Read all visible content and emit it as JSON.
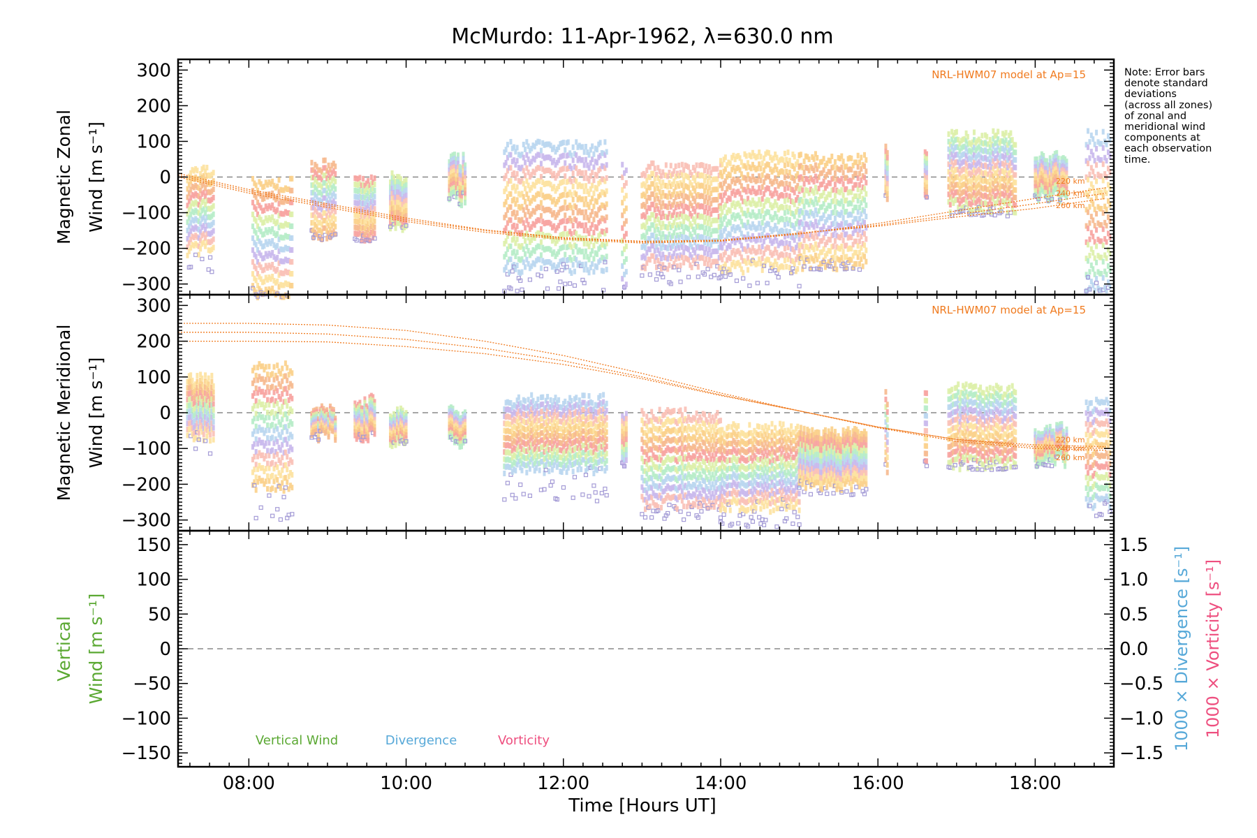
{
  "title": "McMurdo: 11-Apr-1962, λ=630.0 nm",
  "x_axis": {
    "label": "Time [Hours UT]",
    "tick_labels": [
      "08:00",
      "10:00",
      "12:00",
      "14:00",
      "16:00",
      "18:00"
    ],
    "range_hours": [
      7.1,
      19.0
    ]
  },
  "note": [
    "Note: Error bars",
    "denote standard",
    "deviations",
    "(across all zones)",
    "of zonal and",
    "meridional wind",
    "components at",
    "each observation",
    "time."
  ],
  "colors": {
    "model": "#f07a1e",
    "vertical": "#5aa832",
    "divergence": "#56a8d8",
    "vorticity": "#ee4f7f",
    "zero_line": "#888888"
  },
  "chart_data": [
    {
      "type": "scatter",
      "panel": "zonal",
      "ylabel_lines": [
        "Magnetic Zonal",
        "Wind [m s⁻¹]"
      ],
      "ylim": [
        -330,
        330
      ],
      "yticks": [
        300,
        200,
        100,
        0,
        -100,
        -200,
        -300
      ],
      "model_label": "NRL-HWM07 model at Ap=15",
      "model_series": [
        {
          "name": "220 km",
          "x": [
            7.1,
            8,
            9,
            10,
            11,
            12,
            13,
            14,
            15,
            16,
            17,
            18,
            18.9
          ],
          "y": [
            0,
            -45,
            -85,
            -125,
            -155,
            -175,
            -185,
            -180,
            -160,
            -130,
            -95,
            -60,
            -30
          ]
        },
        {
          "name": "240 km",
          "x": [
            7.1,
            8,
            9,
            10,
            11,
            12,
            13,
            14,
            15,
            16,
            17,
            18,
            18.9
          ],
          "y": [
            5,
            -40,
            -80,
            -120,
            -150,
            -172,
            -182,
            -178,
            -158,
            -135,
            -105,
            -75,
            -45
          ]
        },
        {
          "name": "260 km",
          "x": [
            7.1,
            8,
            9,
            10,
            11,
            12,
            13,
            14,
            15,
            16,
            17,
            18,
            18.9
          ],
          "y": [
            10,
            -35,
            -75,
            -115,
            -148,
            -170,
            -180,
            -177,
            -157,
            -138,
            -112,
            -88,
            -60
          ]
        }
      ],
      "observations": [
        {
          "t0": 7.22,
          "t1": 7.55,
          "hi": 10,
          "lo": -200,
          "ext": -270
        },
        {
          "t0": 8.05,
          "t1": 8.55,
          "hi": -20,
          "lo": -320,
          "ext": -330
        },
        {
          "t0": 8.8,
          "t1": 9.1,
          "hi": 30,
          "lo": -160,
          "ext": -165
        },
        {
          "t0": 9.35,
          "t1": 9.6,
          "hi": -20,
          "lo": -175,
          "ext": -180
        },
        {
          "t0": 9.8,
          "t1": 10.0,
          "hi": 0,
          "lo": -130,
          "ext": -135
        },
        {
          "t0": 10.55,
          "t1": 10.75,
          "hi": 45,
          "lo": -60,
          "ext": -60
        },
        {
          "t0": 11.25,
          "t1": 12.55,
          "hi": 80,
          "lo": -250,
          "ext": -320
        },
        {
          "t0": 12.75,
          "t1": 12.8,
          "hi": 20,
          "lo": -300,
          "ext": -310
        },
        {
          "t0": 13.0,
          "t1": 14.0,
          "hi": 20,
          "lo": -240,
          "ext": -300
        },
        {
          "t0": 14.0,
          "t1": 15.0,
          "hi": 50,
          "lo": -250,
          "ext": -320
        },
        {
          "t0": 15.0,
          "t1": 15.85,
          "hi": 45,
          "lo": -240,
          "ext": -260
        },
        {
          "t0": 16.1,
          "t1": 16.12,
          "hi": 70,
          "lo": -60,
          "ext": -60
        },
        {
          "t0": 16.6,
          "t1": 16.62,
          "hi": 60,
          "lo": -60,
          "ext": -60
        },
        {
          "t0": 16.9,
          "t1": 17.75,
          "hi": 110,
          "lo": -80,
          "ext": -110
        },
        {
          "t0": 18.0,
          "t1": 18.4,
          "hi": 50,
          "lo": -50,
          "ext": -60
        },
        {
          "t0": 18.65,
          "t1": 18.95,
          "hi": 110,
          "lo": -300,
          "ext": -320
        }
      ]
    },
    {
      "type": "scatter",
      "panel": "meridional",
      "ylabel_lines": [
        "Magnetic Meridional",
        "Wind [m s⁻¹]"
      ],
      "ylim": [
        -330,
        330
      ],
      "yticks": [
        300,
        200,
        100,
        0,
        -100,
        -200,
        -300
      ],
      "model_label": "NRL-HWM07 model at Ap=15",
      "model_series": [
        {
          "name": "220 km",
          "x": [
            7.1,
            8,
            9,
            10,
            11,
            12,
            13,
            14,
            15,
            16,
            17,
            18,
            18.9
          ],
          "y": [
            250,
            250,
            245,
            230,
            200,
            160,
            110,
            55,
            5,
            -40,
            -75,
            -90,
            -95
          ]
        },
        {
          "name": "240 km",
          "x": [
            7.1,
            8,
            9,
            10,
            11,
            12,
            13,
            14,
            15,
            16,
            17,
            18,
            18.9
          ],
          "y": [
            225,
            225,
            220,
            205,
            180,
            145,
            100,
            50,
            5,
            -40,
            -75,
            -95,
            -100
          ]
        },
        {
          "name": "260 km",
          "x": [
            7.1,
            8,
            9,
            10,
            11,
            12,
            13,
            14,
            15,
            16,
            17,
            18,
            18.9
          ],
          "y": [
            200,
            200,
            198,
            185,
            165,
            135,
            95,
            48,
            5,
            -42,
            -80,
            -100,
            -105
          ]
        }
      ],
      "observations": [
        {
          "t0": 7.22,
          "t1": 7.55,
          "hi": 90,
          "lo": -60,
          "ext": -120
        },
        {
          "t0": 8.05,
          "t1": 8.55,
          "hi": 120,
          "lo": -200,
          "ext": -300
        },
        {
          "t0": 8.8,
          "t1": 9.1,
          "hi": 0,
          "lo": -60,
          "ext": -70
        },
        {
          "t0": 9.35,
          "t1": 9.6,
          "hi": 30,
          "lo": -60,
          "ext": -60
        },
        {
          "t0": 9.8,
          "t1": 10.0,
          "hi": 0,
          "lo": -80,
          "ext": -80
        },
        {
          "t0": 10.55,
          "t1": 10.75,
          "hi": 0,
          "lo": -80,
          "ext": -80
        },
        {
          "t0": 11.25,
          "t1": 12.55,
          "hi": 30,
          "lo": -150,
          "ext": -250
        },
        {
          "t0": 12.75,
          "t1": 12.8,
          "hi": -20,
          "lo": -150,
          "ext": -160
        },
        {
          "t0": 13.0,
          "t1": 14.0,
          "hi": -10,
          "lo": -250,
          "ext": -300
        },
        {
          "t0": 14.0,
          "t1": 15.0,
          "hi": -50,
          "lo": -260,
          "ext": -320
        },
        {
          "t0": 15.0,
          "t1": 15.85,
          "hi": -60,
          "lo": -200,
          "ext": -230
        },
        {
          "t0": 16.1,
          "t1": 16.12,
          "hi": 40,
          "lo": -150,
          "ext": -160
        },
        {
          "t0": 16.6,
          "t1": 16.62,
          "hi": 40,
          "lo": -150,
          "ext": -160
        },
        {
          "t0": 16.9,
          "t1": 17.75,
          "hi": 60,
          "lo": -140,
          "ext": -160
        },
        {
          "t0": 18.0,
          "t1": 18.4,
          "hi": -50,
          "lo": -130,
          "ext": -150
        },
        {
          "t0": 18.65,
          "t1": 18.95,
          "hi": 20,
          "lo": -250,
          "ext": -300
        }
      ]
    },
    {
      "type": "line",
      "panel": "vertical",
      "ylabel_lines": [
        "Vertical",
        "Wind [m s⁻¹]"
      ],
      "ylim": [
        -170,
        170
      ],
      "yticks": [
        150,
        100,
        50,
        0,
        -50,
        -100,
        -150
      ],
      "y2label_lines": [
        "1000 × Divergence [s⁻¹]",
        "1000 × Vorticity [s⁻¹]"
      ],
      "y2lim": [
        -1.7,
        1.7
      ],
      "y2ticks": [
        1.5,
        1.0,
        0.5,
        0.0,
        -0.5,
        -1.0,
        -1.5
      ],
      "y2tick_labels": [
        "1.5",
        "1.0",
        "0.5",
        "0.0",
        "−0.5",
        "−1.0",
        "−1.5"
      ],
      "legend": [
        "Vertical Wind",
        "Divergence",
        "Vorticity"
      ],
      "series": []
    }
  ]
}
